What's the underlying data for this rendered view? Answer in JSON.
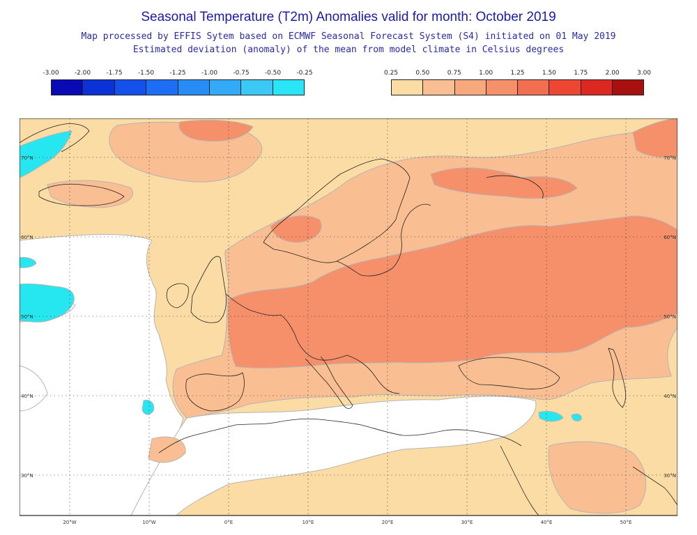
{
  "header": {
    "title": "Seasonal Temperature (T2m) Anomalies valid for month: October 2019",
    "subtitle_1": "Map processed by EFFIS Sytem based on ECMWF Seasonal Forecast System (S4) initiated on 01 May 2019",
    "subtitle_2": "Estimated deviation (anomaly) of the mean from model climate in Celsius degrees"
  },
  "legend_negative": {
    "labels": [
      "-3.00",
      "-2.00",
      "-1.75",
      "-1.50",
      "-1.25",
      "-1.00",
      "-0.75",
      "-0.50",
      "-0.25"
    ],
    "colors": [
      "#0a0ab4",
      "#0a32d7",
      "#1450eb",
      "#1e6ef5",
      "#288cf5",
      "#32aaf5",
      "#3cc8f5",
      "#28e6f5"
    ]
  },
  "legend_positive": {
    "labels": [
      "0.25",
      "0.50",
      "0.75",
      "1.00",
      "1.25",
      "1.50",
      "1.75",
      "2.00",
      "3.00"
    ],
    "colors": [
      "#fcdca5",
      "#f9be91",
      "#f8a87d",
      "#f5906a",
      "#f26e50",
      "#ed4632",
      "#dc2820",
      "#a81010"
    ]
  },
  "map": {
    "lon_labels": [
      "20°W",
      "10°W",
      "0°E",
      "10°E",
      "20°E",
      "30°E",
      "40°E",
      "50°E"
    ],
    "lat_labels": [
      "70°N",
      "60°N",
      "50°N",
      "40°N",
      "30°N"
    ],
    "anomaly_colors": {
      "light": "#fcdca5",
      "medium": "#f9be91",
      "strong": "#f5906a",
      "cool": "#26e6f0",
      "neutral": "#ffffff"
    }
  }
}
